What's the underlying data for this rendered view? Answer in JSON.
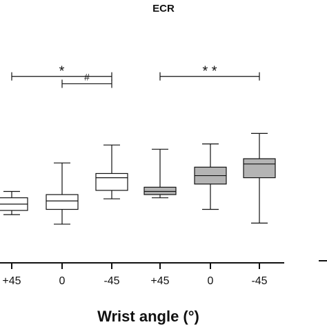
{
  "chart_data": {
    "type": "box",
    "title": "ECR",
    "xlabel": "Wrist angle (°)",
    "ylabel": "",
    "categories": [
      "+45",
      "0",
      "-45",
      "+45",
      "0",
      "-45"
    ],
    "series": [
      {
        "fill_color": "#ffffff",
        "boxes": [
          {
            "whisker_low": 0.225,
            "q1": 0.245,
            "median": 0.275,
            "q3": 0.305,
            "whisker_high": 0.335
          },
          {
            "whisker_low": 0.18,
            "q1": 0.25,
            "median": 0.29,
            "q3": 0.32,
            "whisker_high": 0.47
          },
          {
            "whisker_low": 0.3,
            "q1": 0.34,
            "median": 0.4,
            "q3": 0.42,
            "whisker_high": 0.555
          }
        ]
      },
      {
        "fill_color": "#b4b4b4",
        "boxes": [
          {
            "whisker_low": 0.305,
            "q1": 0.32,
            "median": 0.335,
            "q3": 0.355,
            "whisker_high": 0.535
          },
          {
            "whisker_low": 0.25,
            "q1": 0.37,
            "median": 0.41,
            "q3": 0.45,
            "whisker_high": 0.56
          },
          {
            "whisker_low": 0.185,
            "q1": 0.4,
            "median": 0.465,
            "q3": 0.49,
            "whisker_high": 0.61
          }
        ]
      }
    ],
    "y_range": [
      0,
      1
    ],
    "annotations": [
      {
        "label": "*",
        "from": 0,
        "to": 2,
        "level": 0.88
      },
      {
        "label": "#",
        "from": 1,
        "to": 2,
        "level": 0.845
      },
      {
        "label": "* *",
        "from": 3,
        "to": 5,
        "level": 0.88
      }
    ]
  }
}
